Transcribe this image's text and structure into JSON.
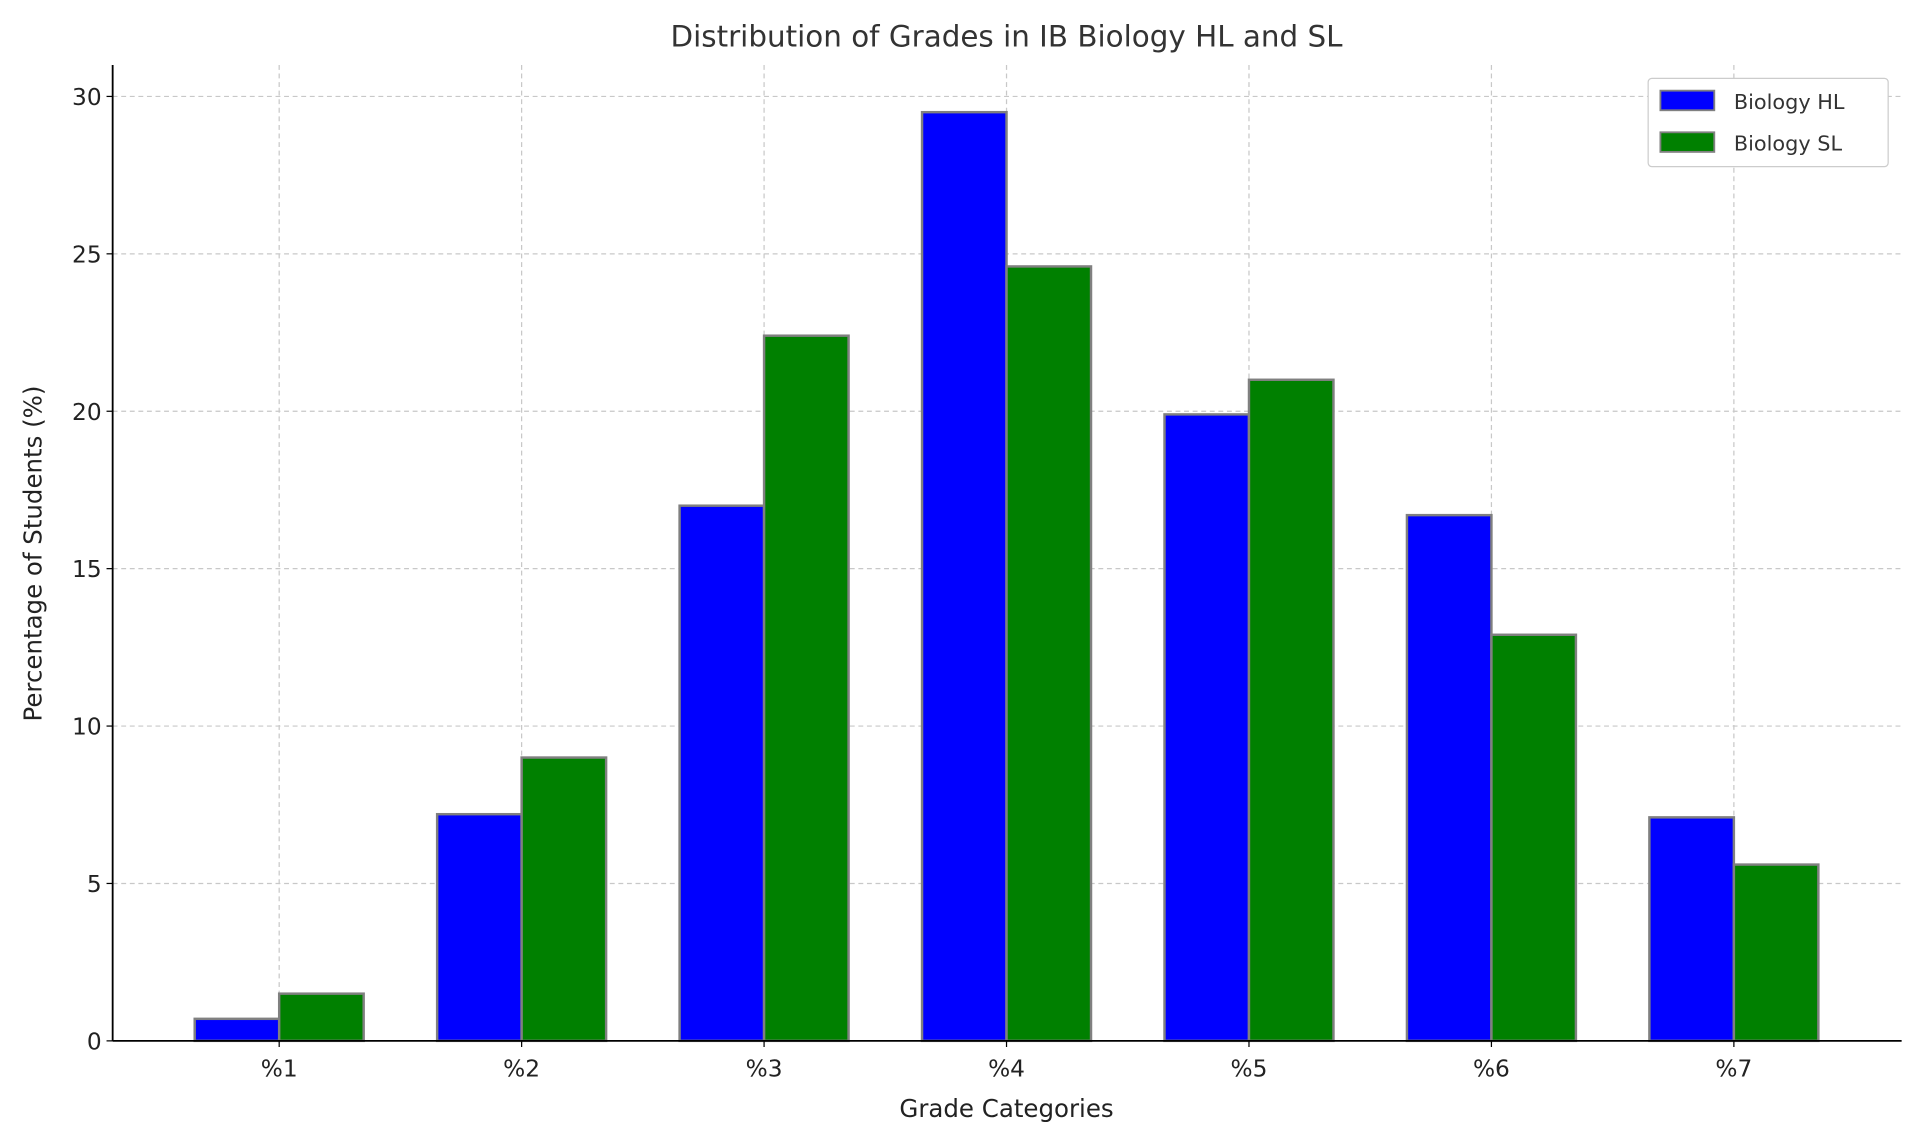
{
  "chart_data": {
    "type": "bar",
    "title": "Distribution of Grades in IB Biology HL and SL",
    "xlabel": "Grade Categories",
    "ylabel": "Percentage of Students (%)",
    "categories": [
      "%1",
      "%2",
      "%3",
      "%4",
      "%5",
      "%6",
      "%7"
    ],
    "series": [
      {
        "name": "Biology HL",
        "color": "#0000ff",
        "values": [
          0.7,
          7.2,
          17.0,
          29.5,
          19.9,
          16.7,
          7.1
        ]
      },
      {
        "name": "Biology SL",
        "color": "#008000",
        "values": [
          1.5,
          9.0,
          22.4,
          24.6,
          21.0,
          12.9,
          5.6
        ]
      }
    ],
    "ylim": [
      0,
      31
    ],
    "yticks": [
      "0",
      "5",
      "10",
      "15",
      "20",
      "25",
      "30"
    ],
    "grid": true,
    "legend": "top-right",
    "bar_edge_color": "#808080"
  }
}
